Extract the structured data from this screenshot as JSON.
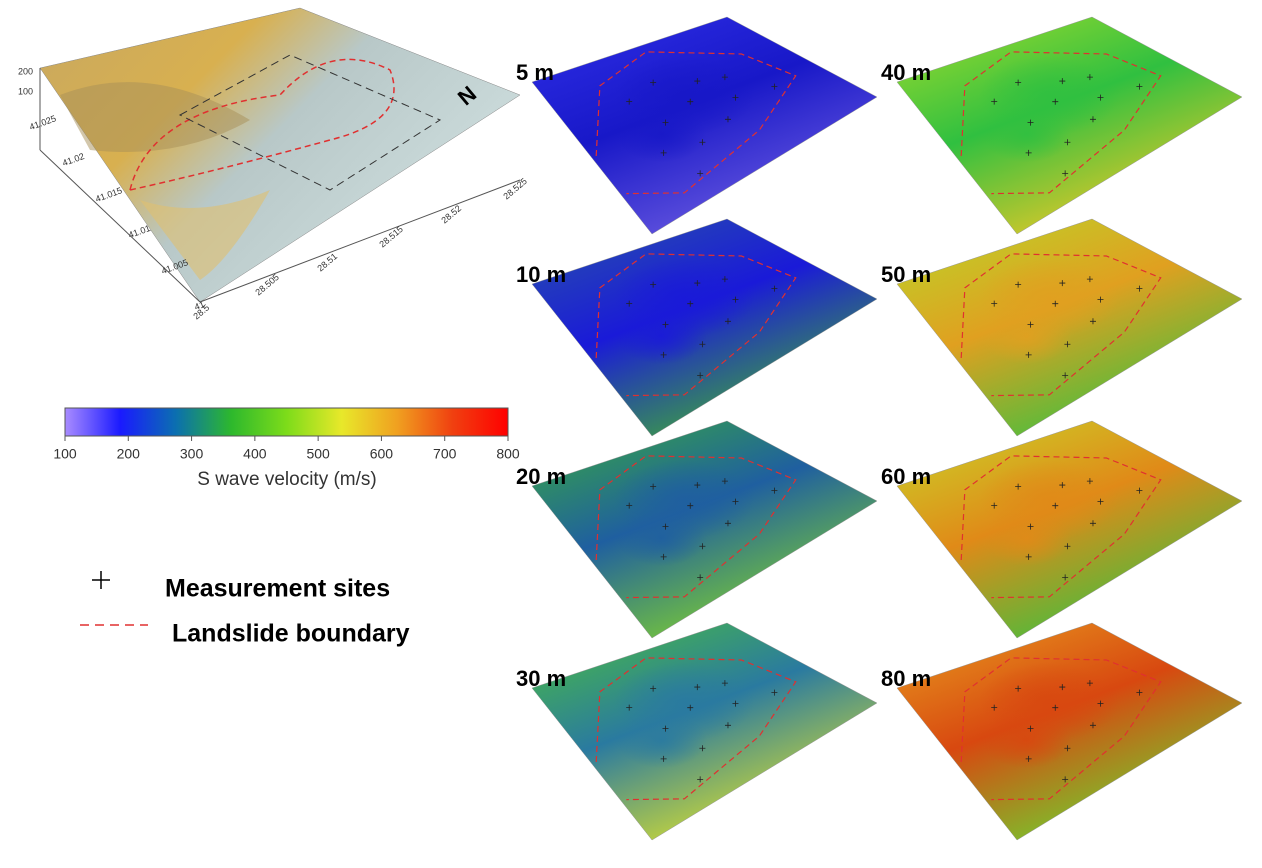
{
  "map": {
    "z_labels": [
      "200",
      "100"
    ],
    "lat_labels": [
      "41.025",
      "41.02",
      "41.015",
      "41.01",
      "41.005",
      "41"
    ],
    "lon_labels": [
      "28.5",
      "28.505",
      "28.51",
      "28.515",
      "28.52",
      "28.525"
    ],
    "north": "N"
  },
  "colorbar": {
    "lim": [
      100,
      800
    ],
    "ticks": [
      100,
      200,
      300,
      400,
      500,
      600,
      700,
      800
    ],
    "colors": [
      "#a98cff",
      "#1a1aff",
      "#0b6fb0",
      "#2db82d",
      "#7ddc1a",
      "#e8e82a",
      "#f0a020",
      "#f04010",
      "#ff0000"
    ],
    "label": "S wave velocity (m/s)"
  },
  "legend": {
    "sites": "Measurement sites",
    "boundary": "Landslide boundary"
  },
  "panels": [
    {
      "label": "5 m",
      "colors": [
        "#3030e8",
        "#1818c8",
        "#6a5ae0"
      ]
    },
    {
      "label": "10 m",
      "colors": [
        "#2a55a8",
        "#1a1ad8",
        "#3fa83a"
      ]
    },
    {
      "label": "20 m",
      "colors": [
        "#3aae3a",
        "#1f5fa0",
        "#7fd030"
      ]
    },
    {
      "label": "30 m",
      "colors": [
        "#4cc23a",
        "#2a7aa0",
        "#d8e030"
      ]
    },
    {
      "label": "40 m",
      "colors": [
        "#a6dc2c",
        "#30c040",
        "#e8c828"
      ]
    },
    {
      "label": "50 m",
      "colors": [
        "#b8d82a",
        "#e0a020",
        "#40c040"
      ]
    },
    {
      "label": "60 m",
      "colors": [
        "#c8d82a",
        "#e08a18",
        "#40c040"
      ]
    },
    {
      "label": "80 m",
      "colors": [
        "#e8a020",
        "#d84810",
        "#70d030"
      ]
    }
  ]
}
